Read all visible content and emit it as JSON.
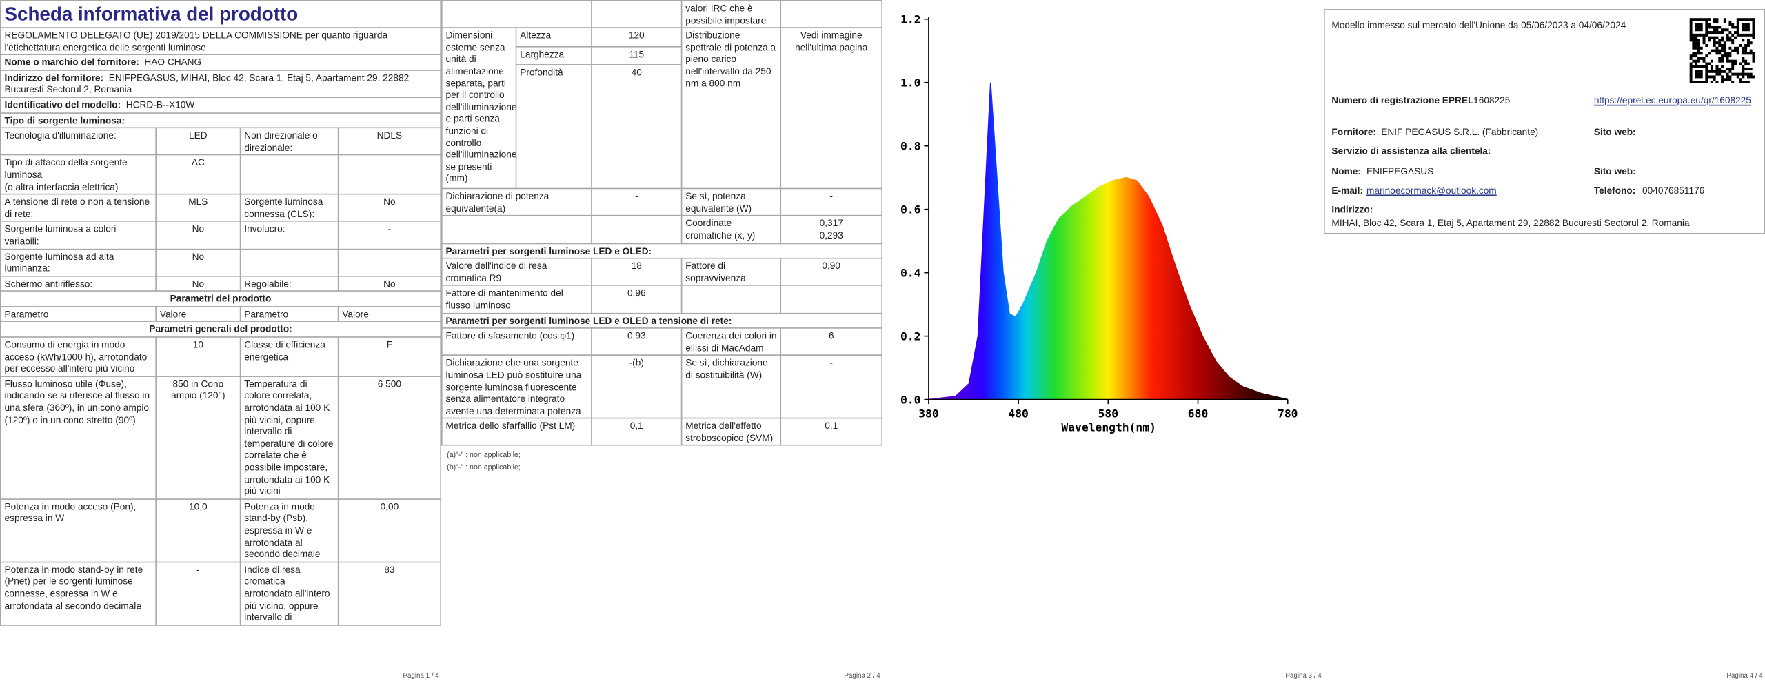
{
  "page1": {
    "title": "Scheda informativa del prodotto",
    "regulation": "REGOLAMENTO DELEGATO (UE) 2019/2015 DELLA COMMISSIONE per quanto riguarda l'etichettatura energetica delle sorgenti luminose",
    "supplier": [
      "Nome o marchio del fornitore:",
      "HAO CHANG"
    ],
    "address": [
      "Indirizzo del fornitore:",
      "ENIFPEGASUS, MIHAI, Bloc 42, Scara 1, Etaj 5, Apartament 29, 22882 Bucuresti Sectorul 2, Romania"
    ],
    "model": [
      "Identificativo del modello:",
      "HCRD-B--X10W"
    ],
    "source_type": "Tipo di sorgente luminosa:",
    "source_rows": [
      [
        "Tecnologia d'illuminazione:",
        "LED",
        "Non direzionale o direzionale:",
        "NDLS"
      ],
      [
        "Tipo di attacco della sorgente luminosa\n(o altra interfaccia elettrica)",
        "AC"
      ],
      [
        "A tensione di rete o non a tensione di rete:",
        "MLS",
        "Sorgente luminosa connessa (CLS):",
        "No"
      ],
      [
        "Sorgente luminosa a colori variabili:",
        "No",
        "Involucro:",
        "-"
      ],
      [
        "Sorgente luminosa ad alta luminanza:",
        "No"
      ],
      [
        "Schermo antiriflesso:",
        "No",
        "Regolabile:",
        "No"
      ]
    ],
    "product_params": "Parametri del prodotto",
    "param_header": [
      "Parametro",
      "Valore",
      "Parametro",
      "Valore"
    ],
    "general_params": "Parametri generali del prodotto:",
    "general_rows": [
      [
        "Consumo di energia in modo acceso (kWh/1000 h), arrotondato per eccesso all'intero più vicino",
        "10",
        "Classe di efficienza energetica",
        "F"
      ],
      [
        "Flusso luminoso utile (Φuse), indicando se si riferisce al flusso in una sfera (360º), in un cono ampio (120º) o in un cono stretto (90º)",
        "850 in Cono ampio (120°)",
        "Temperatura di colore correlata, arrotondata ai 100 K più vicini, oppure intervallo di temperature di colore correlate che è possibile impostare, arrotondata ai 100 K più vicini",
        "6 500"
      ],
      [
        "Potenza in modo acceso (Pon), espressa in W",
        "10,0",
        "Potenza in modo stand-by (Psb), espressa in W e arrotondata al secondo decimale",
        "0,00"
      ],
      [
        "Potenza in modo stand-by in rete (Pnet) per le sorgenti luminose connesse, espressa in W e arrotondata al secondo decimale",
        "-",
        "Indice di resa cromatica arrotondato all'intero più vicino, oppure intervallo di",
        "83"
      ]
    ]
  },
  "page2": {
    "continued": "valori IRC che è possibile impostare",
    "dimensions": {
      "label": "Dimensioni esterne senza unità di alimentazione separata, parti per il controllo dell'illuminazione e parti senza funzioni di controllo dell'illuminazione, se presenti (mm)",
      "rows": [
        [
          "Altezza",
          "120"
        ],
        [
          "Larghezza",
          "115"
        ],
        [
          "Profondità",
          "40"
        ]
      ]
    },
    "spectrum": {
      "label": "Distribuzione spettrale di potenza a pieno carico nell'intervallo da 250 nm a 800 nm",
      "value": "Vedi immagine nell'ultima pagina"
    },
    "rows_a": [
      [
        "Dichiarazione di potenza equivalente(a)",
        "-",
        "Se sì, potenza equivalente (W)",
        "-"
      ],
      [
        null,
        null,
        "Coordinate cromatiche (x, y)",
        "0,317\n0,293"
      ]
    ],
    "led_heading": "Parametri per sorgenti luminose LED e OLED:",
    "rows_led": [
      [
        "Valore dell'indice di resa cromatica R9",
        "18",
        "Fattore di sopravvivenza",
        "0,90"
      ],
      [
        "Fattore di mantenimento del flusso luminoso",
        "0,96"
      ]
    ],
    "mains_heading": "Parametri per sorgenti luminose LED e OLED a tensione di rete:",
    "rows_mains": [
      [
        "Fattore di sfasamento (cos φ1)",
        "0,93",
        "Coerenza dei colori in ellissi di MacAdam",
        "6"
      ],
      [
        "Dichiarazione che una sorgente luminosa LED può sostituire una sorgente luminosa fluorescente senza alimentatore integrato avente una determinata potenza",
        "-(b)",
        "Se sì, dichiarazione di sostituibilità (W)",
        "-"
      ],
      [
        "Metrica dello sfarfallio (Pst LM)",
        "0,1",
        "Metrica dell'effetto stroboscopico (SVM)",
        "0,1"
      ]
    ],
    "notes": [
      "(a)\"-\" : non applicabile;",
      "(b)\"-\" : non applicabile;"
    ]
  },
  "chart_data": {
    "type": "area",
    "x_label": "Wavelength(nm)",
    "x": [
      380,
      410,
      425,
      435,
      442,
      449,
      456,
      463,
      470,
      477,
      485,
      500,
      512,
      525,
      540,
      555,
      570,
      585,
      600,
      612,
      625,
      640,
      655,
      670,
      685,
      700,
      715,
      730,
      750,
      765,
      780
    ],
    "values": [
      0,
      0.01,
      0.05,
      0.2,
      0.6,
      1.0,
      0.7,
      0.4,
      0.27,
      0.26,
      0.3,
      0.4,
      0.5,
      0.57,
      0.61,
      0.64,
      0.67,
      0.69,
      0.7,
      0.69,
      0.64,
      0.55,
      0.42,
      0.3,
      0.2,
      0.12,
      0.07,
      0.04,
      0.02,
      0.01,
      0
    ],
    "xlim": [
      380,
      780
    ],
    "ylim": [
      0,
      1.2
    ],
    "xticks": [
      380,
      480,
      580,
      680,
      780
    ],
    "yticks": [
      {
        "value": 0,
        "label": "0.0"
      },
      {
        "value": 0.2,
        "label": "0.2"
      },
      {
        "value": 0.4,
        "label": "0.4"
      },
      {
        "value": 0.6,
        "label": "0.6"
      },
      {
        "value": 0.8,
        "label": "0.8"
      },
      {
        "value": 1.0,
        "label": "1.0"
      },
      {
        "value": 1.2,
        "label": "1.2"
      }
    ]
  },
  "page4": {
    "market": "Modello immesso sul mercato dell'Unione da 05/06/2023 a 04/06/2024",
    "eprel_label": "Numero di registrazione EPREL:",
    "eprel": "1608225",
    "eprel_link": "https://eprel.ec.europa.eu/qr/1608225",
    "supplier_label": "Fornitore:",
    "supplier": "ENIF PEGASUS S.R.L. (Fabbricante)",
    "website_label": "Sito web:",
    "service": "Servizio di assistenza alla clientela:",
    "name_label": "Nome:",
    "name": "ENIFPEGASUS",
    "website_label_2": "Sito web:",
    "email_label": "E-mail:",
    "email": "marinoecormack@outlook.com",
    "phone_label": "Telefono:",
    "phone": "004076851176",
    "address_label": "Indirizzo:",
    "address": "MIHAI, Bloc 42, Scara 1, Etaj 5, Apartament 29, 22882 Bucuresti Sectorul 2, Romania"
  },
  "footers": [
    "Pagina 1 / 4",
    "Pagina 2 / 4",
    "Pagina 3 / 4",
    "Pagina 4 / 4"
  ]
}
